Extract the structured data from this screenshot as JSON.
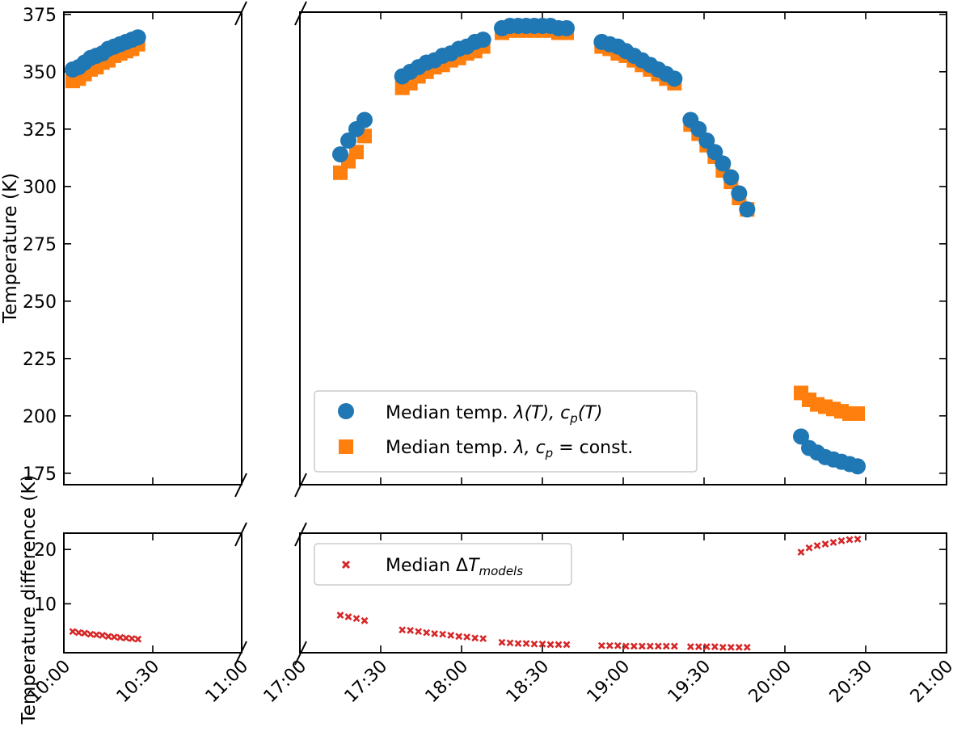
{
  "chart_data": {
    "type": "scatter",
    "x_tick_labels": [
      "10:00",
      "10:30",
      "11:00",
      "17:00",
      "17:30",
      "18:00",
      "18:30",
      "19:00",
      "19:30",
      "20:00",
      "20:30",
      "21:00"
    ],
    "top": {
      "ylabel": "Temperature (K)",
      "ylim": [
        170,
        376
      ],
      "yticks": [
        175,
        200,
        225,
        250,
        275,
        300,
        325,
        350,
        375
      ],
      "series": [
        {
          "name": "Median temp. λ(T), c_p(T)",
          "marker": "circle",
          "color": "#1f77b4",
          "x": [
            "10:03",
            "10:05",
            "10:07",
            "10:09",
            "10:11",
            "10:13",
            "10:15",
            "10:17",
            "10:19",
            "10:21",
            "10:23",
            "10:25",
            "17:15",
            "17:18",
            "17:21",
            "17:24",
            "17:38",
            "17:41",
            "17:44",
            "17:47",
            "17:50",
            "17:53",
            "17:56",
            "17:59",
            "18:02",
            "18:05",
            "18:08",
            "18:15",
            "18:18",
            "18:21",
            "18:24",
            "18:27",
            "18:30",
            "18:33",
            "18:36",
            "18:39",
            "18:52",
            "18:55",
            "18:58",
            "19:01",
            "19:04",
            "19:07",
            "19:10",
            "19:13",
            "19:16",
            "19:19",
            "19:25",
            "19:28",
            "19:31",
            "19:34",
            "19:37",
            "19:40",
            "19:43",
            "19:46",
            "20:06",
            "20:09",
            "20:12",
            "20:15",
            "20:18",
            "20:21",
            "20:24",
            "20:27"
          ],
          "y": [
            351,
            352,
            354,
            356,
            357,
            358,
            360,
            361,
            362,
            363,
            364,
            365,
            314,
            320,
            325,
            329,
            348,
            350,
            352,
            354,
            355,
            357,
            358,
            360,
            361,
            363,
            364,
            369,
            370,
            370,
            370,
            370,
            370,
            370,
            369,
            369,
            363,
            362,
            361,
            359,
            357,
            355,
            353,
            351,
            349,
            347,
            329,
            325,
            320,
            315,
            310,
            304,
            297,
            290,
            191,
            186,
            184,
            182,
            181,
            180,
            179,
            178
          ]
        },
        {
          "name": "Median temp. λ, c_p = const.",
          "marker": "square",
          "color": "#ff7f0e",
          "x": [
            "10:03",
            "10:05",
            "10:07",
            "10:09",
            "10:11",
            "10:13",
            "10:15",
            "10:17",
            "10:19",
            "10:21",
            "10:23",
            "10:25",
            "17:15",
            "17:18",
            "17:21",
            "17:24",
            "17:38",
            "17:41",
            "17:44",
            "17:47",
            "17:50",
            "17:53",
            "17:56",
            "17:59",
            "18:02",
            "18:05",
            "18:08",
            "18:15",
            "18:18",
            "18:21",
            "18:24",
            "18:27",
            "18:30",
            "18:33",
            "18:36",
            "18:39",
            "18:52",
            "18:55",
            "18:58",
            "19:01",
            "19:04",
            "19:07",
            "19:10",
            "19:13",
            "19:16",
            "19:19",
            "19:25",
            "19:28",
            "19:31",
            "19:34",
            "19:37",
            "19:40",
            "19:43",
            "19:46",
            "20:06",
            "20:09",
            "20:12",
            "20:15",
            "20:18",
            "20:21",
            "20:24",
            "20:27"
          ],
          "y": [
            346,
            347,
            349,
            351,
            352,
            354,
            355,
            357,
            358,
            359,
            360,
            362,
            306,
            311,
            315,
            322,
            343,
            345,
            348,
            350,
            352,
            353,
            355,
            356,
            358,
            359,
            361,
            367,
            368,
            368,
            368,
            368,
            368,
            368,
            367,
            367,
            361,
            360,
            358,
            357,
            355,
            353,
            351,
            349,
            347,
            345,
            327,
            323,
            318,
            313,
            307,
            302,
            295,
            290,
            210,
            207,
            205,
            204,
            203,
            202,
            201,
            201
          ]
        }
      ],
      "legend": "lower-center"
    },
    "bottom": {
      "ylabel": "Temperature difference (K)",
      "ylim": [
        1,
        23
      ],
      "yticks": [
        10,
        20
      ],
      "series": [
        {
          "name": "Median ΔT_models",
          "marker": "x",
          "color": "#d62728",
          "x": [
            "10:03",
            "10:05",
            "10:07",
            "10:09",
            "10:11",
            "10:13",
            "10:15",
            "10:17",
            "10:19",
            "10:21",
            "10:23",
            "10:25",
            "17:15",
            "17:18",
            "17:21",
            "17:24",
            "17:38",
            "17:41",
            "17:44",
            "17:47",
            "17:50",
            "17:53",
            "17:56",
            "17:59",
            "18:02",
            "18:05",
            "18:08",
            "18:15",
            "18:18",
            "18:21",
            "18:24",
            "18:27",
            "18:30",
            "18:33",
            "18:36",
            "18:39",
            "18:52",
            "18:55",
            "18:58",
            "19:01",
            "19:04",
            "19:07",
            "19:10",
            "19:13",
            "19:16",
            "19:19",
            "19:25",
            "19:28",
            "19:31",
            "19:34",
            "19:37",
            "19:40",
            "19:43",
            "19:46",
            "20:06",
            "20:09",
            "20:12",
            "20:15",
            "20:18",
            "20:21",
            "20:24",
            "20:27"
          ],
          "y": [
            4.9,
            4.7,
            4.6,
            4.4,
            4.3,
            4.2,
            4.0,
            3.9,
            3.8,
            3.7,
            3.6,
            3.5,
            7.9,
            7.6,
            7.3,
            6.9,
            5.2,
            5.1,
            4.9,
            4.7,
            4.5,
            4.4,
            4.2,
            4.0,
            3.9,
            3.7,
            3.6,
            2.9,
            2.8,
            2.7,
            2.7,
            2.6,
            2.6,
            2.5,
            2.5,
            2.5,
            2.3,
            2.3,
            2.3,
            2.2,
            2.2,
            2.2,
            2.2,
            2.2,
            2.2,
            2.2,
            2.1,
            2.1,
            2.1,
            2.1,
            2.0,
            2.0,
            2.0,
            2.0,
            19.5,
            20.3,
            20.7,
            21.0,
            21.3,
            21.6,
            21.8,
            21.9
          ]
        }
      ],
      "legend": "upper-left"
    }
  },
  "legend": {
    "circle_label": "Median temp. ",
    "circle_math": "λ(T), c",
    "circle_sub": "p",
    "circle_math2": "(T)",
    "square_label": "Median temp. ",
    "square_math": "λ, c",
    "square_sub": "p",
    "square_math2": " = const.",
    "cross_label": "Median Δ",
    "cross_math": "T",
    "cross_sub": "models"
  },
  "colors": {
    "blue": "#1f77b4",
    "orange": "#ff7f0e",
    "red": "#d62728"
  }
}
